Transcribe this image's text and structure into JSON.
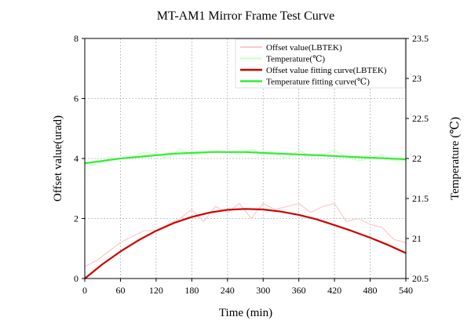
{
  "chart_data": {
    "type": "line",
    "title": "MT-AM1 Mirror Frame Test Curve",
    "xlabel": "Time (min)",
    "ylabel_left": "Offset value(urad)",
    "ylabel_right": "Temperature (℃)",
    "xlim": [
      0,
      540
    ],
    "ylim_left": [
      0,
      8
    ],
    "ylim_right": [
      20.5,
      23.5
    ],
    "x_ticks": [
      "0",
      "60",
      "120",
      "180",
      "240",
      "300",
      "360",
      "420",
      "480",
      "540"
    ],
    "y_left_ticks": [
      "0",
      "2",
      "4",
      "6",
      "8"
    ],
    "y_right_ticks": [
      "20.5",
      "21",
      "21.5",
      "22",
      "22.5",
      "23",
      "23.5"
    ],
    "grid": true,
    "legend_position": "top-right",
    "colors": {
      "offset_raw": "#ffc8c8",
      "temperature_raw": "#c8ffc8",
      "offset_fit": "#cc0000",
      "temperature_fit": "#33ee33"
    },
    "series": [
      {
        "name": "Offset value(LBTEK)",
        "axis": "left",
        "style": "raw",
        "x": [
          0,
          20,
          40,
          60,
          80,
          100,
          120,
          140,
          160,
          180,
          200,
          220,
          240,
          260,
          280,
          300,
          320,
          340,
          360,
          380,
          400,
          420,
          440,
          460,
          480,
          500,
          520,
          540
        ],
        "y": [
          0.4,
          0.6,
          0.9,
          1.2,
          1.4,
          1.6,
          1.6,
          1.8,
          2.0,
          2.3,
          1.9,
          2.4,
          2.2,
          2.5,
          2.0,
          2.5,
          2.3,
          2.4,
          2.5,
          2.2,
          2.4,
          2.5,
          1.9,
          2.0,
          1.8,
          1.7,
          1.3,
          1.2
        ]
      },
      {
        "name": "Temperature(℃)",
        "axis": "right",
        "style": "raw",
        "x": [
          0,
          20,
          40,
          60,
          80,
          100,
          120,
          140,
          160,
          180,
          200,
          220,
          240,
          260,
          280,
          300,
          320,
          340,
          360,
          380,
          400,
          420,
          440,
          460,
          480,
          500,
          520,
          540
        ],
        "y": [
          21.9,
          21.93,
          22.0,
          22.0,
          22.02,
          22.08,
          22.05,
          22.0,
          22.12,
          22.05,
          22.06,
          22.1,
          22.08,
          22.05,
          22.12,
          22.05,
          22.06,
          22.0,
          22.1,
          22.03,
          22.05,
          22.1,
          22.02,
          21.97,
          22.0,
          22.05,
          21.97,
          21.98
        ]
      },
      {
        "name": "Offset value fitting curve(LBTEK)",
        "axis": "left",
        "style": "fit",
        "x": [
          0,
          30,
          60,
          90,
          120,
          150,
          180,
          210,
          240,
          270,
          300,
          330,
          360,
          390,
          420,
          450,
          480,
          510,
          540
        ],
        "y": [
          0.0,
          0.48,
          0.9,
          1.27,
          1.59,
          1.85,
          2.05,
          2.2,
          2.29,
          2.32,
          2.3,
          2.23,
          2.12,
          1.97,
          1.78,
          1.58,
          1.36,
          1.12,
          0.85
        ]
      },
      {
        "name": "Temperature fitting curve(℃)",
        "axis": "right",
        "style": "fit",
        "x": [
          0,
          30,
          60,
          90,
          120,
          150,
          180,
          210,
          240,
          270,
          300,
          330,
          360,
          390,
          420,
          450,
          480,
          510,
          540
        ],
        "y": [
          21.94,
          21.97,
          22.0,
          22.02,
          22.04,
          22.06,
          22.07,
          22.08,
          22.08,
          22.08,
          22.07,
          22.06,
          22.05,
          22.04,
          22.03,
          22.02,
          22.01,
          22.0,
          21.99
        ]
      }
    ]
  }
}
